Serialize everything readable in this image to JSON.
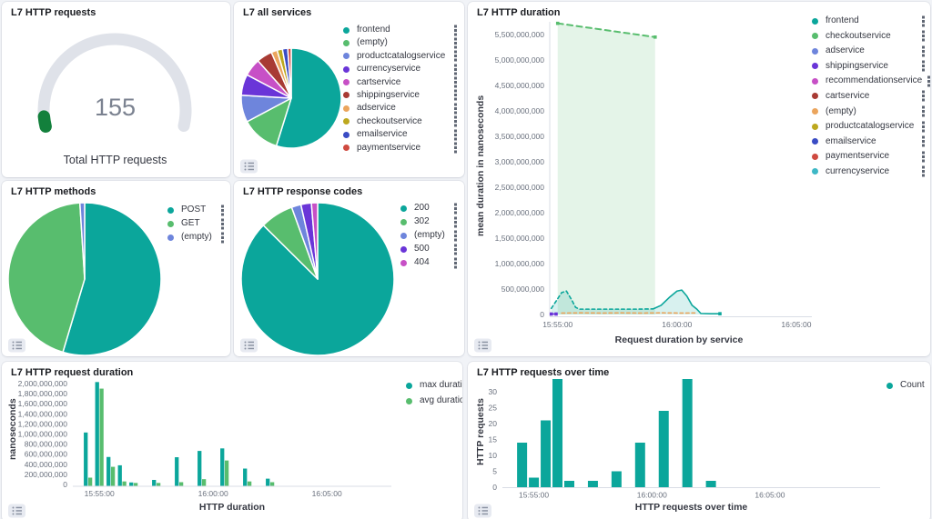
{
  "dashboard": {
    "background": "#f1f3f7"
  },
  "icons": {
    "legend_more": "boxes-vertical-icon",
    "legend_toggle": "list-icon"
  },
  "panels": {
    "gauge": {
      "title": "L7 HTTP requests"
    },
    "services": {
      "title": "L7 all services"
    },
    "duration": {
      "title": "L7 HTTP duration"
    },
    "methods": {
      "title": "L7 HTTP methods"
    },
    "codes": {
      "title": "L7 HTTP response codes"
    },
    "req_duration": {
      "title": "L7 HTTP request duration"
    },
    "req_over_time": {
      "title": "L7 HTTP requests over time"
    }
  },
  "chart_data": [
    {
      "type": "gauge",
      "title": "L7 HTTP requests",
      "value": "155",
      "caption": "Total HTTP requests",
      "fill_fraction": 0.04,
      "track_color": "#dfe2e9",
      "fill_color": "#13803c"
    },
    {
      "type": "pie",
      "title": "L7 all services",
      "slices": [
        {
          "label": "frontend",
          "pct": 54,
          "color": "#0ba69b"
        },
        {
          "label": "(empty)",
          "pct": 12.2,
          "color": "#58bd6e"
        },
        {
          "label": "productcatalogservice",
          "pct": 8.6,
          "color": "#6e85dc"
        },
        {
          "label": "currencyservice",
          "pct": 6.7,
          "color": "#6a35d8"
        },
        {
          "label": "cartservice",
          "pct": 5.6,
          "color": "#c750c6"
        },
        {
          "label": "shippingservice",
          "pct": 5.0,
          "color": "#a83b34"
        },
        {
          "label": "adservice",
          "pct": 1.9,
          "color": "#eba55d"
        },
        {
          "label": "checkoutservice",
          "pct": 1.7,
          "color": "#bda81e"
        },
        {
          "label": "emailservice",
          "pct": 1.7,
          "color": "#3a4cc4"
        },
        {
          "label": "paymentservice",
          "pct": 1.1,
          "color": "#cf4a40"
        }
      ]
    },
    {
      "type": "pie",
      "title": "L7 HTTP methods",
      "slices": [
        {
          "label": "POST",
          "pct": 54.6,
          "color": "#0ba69b"
        },
        {
          "label": "GET",
          "pct": 44.4,
          "color": "#58bd6e"
        },
        {
          "label": "(empty)",
          "pct": 1.0,
          "color": "#6e85dc"
        }
      ]
    },
    {
      "type": "pie",
      "title": "L7 HTTP response codes",
      "slices": [
        {
          "label": "200",
          "pct": 87.0,
          "color": "#0ba69b"
        },
        {
          "label": "302",
          "pct": 7.0,
          "color": "#58bd6e"
        },
        {
          "label": "(empty)",
          "pct": 2.0,
          "color": "#6e85dc"
        },
        {
          "label": "500",
          "pct": 2.2,
          "color": "#6a35d8"
        },
        {
          "label": "404",
          "pct": 1.3,
          "color": "#c750c6"
        }
      ]
    },
    {
      "type": "line",
      "title": "L7 HTTP duration",
      "ylabel": "mean duration in nanoseconds",
      "xtitle": "Request duration by service",
      "y_ticks": [
        "0",
        "500,000,000",
        "1,000,000,000",
        "1,500,000,000",
        "2,000,000,000",
        "2,500,000,000",
        "3,000,000,000",
        "3,500,000,000",
        "4,000,000,000",
        "4,500,000,000",
        "5,000,000,000",
        "5,500,000,000"
      ],
      "x_ticks": [
        {
          "label": "15:55:00",
          "s": 60
        },
        {
          "label": "16:00:00",
          "s": 360
        },
        {
          "label": "16:05:00",
          "s": 660
        }
      ],
      "x_domain_s": [
        40,
        690
      ],
      "y_domain": [
        0,
        5500000000
      ],
      "series": [
        {
          "name": "checkoutservice",
          "color": "#58bd6e",
          "dash": true,
          "area": true,
          "fill": "rgba(88,189,110,0.16)",
          "markers": true,
          "points": [
            [
              60,
              5720000000
            ],
            [
              305,
              5450000000
            ]
          ]
        },
        {
          "name": "frontend",
          "color": "#0ba69b",
          "area": true,
          "fill": "rgba(11,166,155,0.16)",
          "dash_until": 300,
          "end_marker": true,
          "points": [
            [
              44,
              120000000
            ],
            [
              55,
              250000000
            ],
            [
              70,
              430000000
            ],
            [
              82,
              460000000
            ],
            [
              95,
              290000000
            ],
            [
              105,
              140000000
            ],
            [
              115,
              105000000
            ],
            [
              160,
              105000000
            ],
            [
              210,
              105000000
            ],
            [
              260,
              105000000
            ],
            [
              300,
              110000000
            ],
            [
              320,
              180000000
            ],
            [
              340,
              330000000
            ],
            [
              360,
              460000000
            ],
            [
              372,
              480000000
            ],
            [
              385,
              360000000
            ],
            [
              398,
              180000000
            ],
            [
              410,
              105000000
            ],
            [
              420,
              20000000
            ],
            [
              445,
              15000000
            ],
            [
              468,
              15000000
            ]
          ]
        },
        {
          "name": "(empty)",
          "color": "#eba55d",
          "dash": true,
          "points": [
            [
              70,
              28000000
            ],
            [
              120,
              32000000
            ],
            [
              170,
              28000000
            ],
            [
              220,
              32000000
            ],
            [
              270,
              28000000
            ],
            [
              320,
              32000000
            ],
            [
              370,
              28000000
            ],
            [
              405,
              30000000
            ]
          ]
        },
        {
          "name": "shippingservice",
          "color": "#6a35d8",
          "markers": true,
          "points": [
            [
              44,
              9000000
            ],
            [
              56,
              9000000
            ]
          ]
        }
      ],
      "legend": [
        {
          "label": "frontend",
          "color": "#0ba69b"
        },
        {
          "label": "checkoutservice",
          "color": "#58bd6e"
        },
        {
          "label": "adservice",
          "color": "#6e85dc"
        },
        {
          "label": "shippingservice",
          "color": "#6a35d8"
        },
        {
          "label": "recommendationservice",
          "color": "#c750c6"
        },
        {
          "label": "cartservice",
          "color": "#a83b34"
        },
        {
          "label": "(empty)",
          "color": "#eba55d"
        },
        {
          "label": "productcatalogservice",
          "color": "#bda81e"
        },
        {
          "label": "emailservice",
          "color": "#3a4cc4"
        },
        {
          "label": "paymentservice",
          "color": "#cf4a40"
        },
        {
          "label": "currencyservice",
          "color": "#3eb8c6"
        }
      ]
    },
    {
      "type": "bar",
      "title": "L7 HTTP request duration",
      "ylabel": "nanoseconds",
      "xtitle": "HTTP duration",
      "y_ticks": [
        "0",
        "200,000,000",
        "400,000,000",
        "600,000,000",
        "800,000,000",
        "1,000,000,000",
        "1,200,000,000",
        "1,400,000,000",
        "1,600,000,000",
        "1,800,000,000",
        "2,000,000,000"
      ],
      "x_ticks": [
        {
          "label": "15:55:00",
          "s": 60
        },
        {
          "label": "16:00:00",
          "s": 360
        },
        {
          "label": "16:05:00",
          "s": 660
        }
      ],
      "x_domain_s": [
        -10,
        830
      ],
      "y_domain": [
        0,
        2000000000
      ],
      "categories": [
        "15:54:30",
        "15:55:00",
        "15:55:30",
        "15:56:00",
        "15:56:30",
        "15:57:30",
        "15:58:30",
        "15:59:30",
        "16:00:30",
        "16:01:30",
        "16:02:30"
      ],
      "x_offsets_s": [
        30,
        60,
        90,
        120,
        150,
        210,
        270,
        330,
        390,
        450,
        510
      ],
      "series": [
        {
          "name": "max duration",
          "color": "#0ba69b",
          "values": [
            1030000000,
            2030000000,
            545000000,
            380000000,
            40000000,
            90000000,
            540000000,
            665000000,
            715000000,
            315000000,
            115000000
          ]
        },
        {
          "name": "avg duration",
          "color": "#58bd6e",
          "values": [
            135000000,
            1900000000,
            350000000,
            60000000,
            30000000,
            30000000,
            45000000,
            105000000,
            475000000,
            60000000,
            45000000
          ]
        }
      ],
      "legend": [
        {
          "label": "max duration",
          "color": "#0ba69b"
        },
        {
          "label": "avg duration",
          "color": "#58bd6e"
        }
      ]
    },
    {
      "type": "bar",
      "title": "L7 HTTP requests over time",
      "ylabel": "HTTP requests",
      "xtitle": "HTTP requests over time",
      "y_ticks": [
        "0",
        "5",
        "10",
        "15",
        "20",
        "25",
        "30"
      ],
      "x_ticks": [
        {
          "label": "15:55:00",
          "s": 60
        },
        {
          "label": "16:00:00",
          "s": 360
        },
        {
          "label": "16:05:00",
          "s": 660
        }
      ],
      "x_domain_s": [
        -20,
        940
      ],
      "y_domain": [
        0,
        35
      ],
      "categories": [
        "15:54:30",
        "15:55:00",
        "15:55:30",
        "15:56:00",
        "15:56:30",
        "15:57:30",
        "15:58:30",
        "15:59:30",
        "16:00:30",
        "16:01:30",
        "16:02:30"
      ],
      "x_offsets_s": [
        30,
        60,
        90,
        120,
        150,
        210,
        270,
        330,
        390,
        450,
        510
      ],
      "series": [
        {
          "name": "Count",
          "color": "#0ba69b",
          "values": [
            14,
            3,
            21,
            34,
            2,
            2,
            5,
            14,
            24,
            34,
            2
          ]
        }
      ],
      "legend": [
        {
          "label": "Count",
          "color": "#0ba69b"
        }
      ]
    }
  ]
}
